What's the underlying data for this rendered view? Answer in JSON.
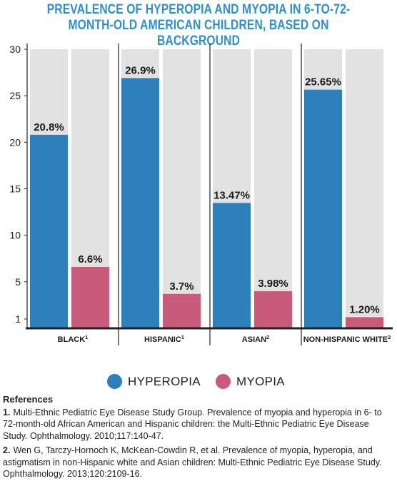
{
  "title": "PREVALENCE OF HYPEROPIA AND MYOPIA IN 6-TO-72-MONTH-OLD AMERICAN CHILDREN, BASED ON BACKGROUND",
  "colors": {
    "title": "#2e8fcf",
    "hyperopia": "#2e80bd",
    "myopia": "#c85a7a",
    "track": "#e2e2e2",
    "axis": "#222222"
  },
  "chart_data": {
    "type": "bar",
    "title": "PREVALENCE OF HYPEROPIA AND MYOPIA IN 6-TO-72-MONTH-OLD AMERICAN CHILDREN, BASED ON BACKGROUND",
    "xlabel": "",
    "ylabel": "",
    "ylim": [
      0,
      30
    ],
    "yticks": [
      {
        "value": 30,
        "label": "30"
      },
      {
        "value": 25,
        "label": "25"
      },
      {
        "value": 20,
        "label": "20"
      },
      {
        "value": 15,
        "label": "15"
      },
      {
        "value": 10,
        "label": "10"
      },
      {
        "value": 5,
        "label": "5"
      },
      {
        "value": 1,
        "label": "1"
      }
    ],
    "categories": [
      {
        "label": "BLACK",
        "sup": "1"
      },
      {
        "label": "HISPANIC",
        "sup": "1"
      },
      {
        "label": "ASIAN",
        "sup": "2"
      },
      {
        "label": "NON-HISPANIC WHITE",
        "sup": "2"
      }
    ],
    "series": [
      {
        "name": "HYPEROPIA",
        "values": [
          20.8,
          26.9,
          13.47,
          25.65
        ],
        "labels": [
          "20.8%",
          "26.9%",
          "13.47%",
          "25.65%"
        ]
      },
      {
        "name": "MYOPIA",
        "values": [
          6.6,
          3.7,
          3.98,
          1.2
        ],
        "labels": [
          "6.6%",
          "3.7%",
          "3.98%",
          "1.20%"
        ]
      }
    ],
    "grid": false,
    "legend": "bottom-center"
  },
  "legend": {
    "hyperopia": "HYPEROPIA",
    "myopia": "MYOPIA"
  },
  "references": {
    "heading": "References",
    "items": [
      {
        "num": "1.",
        "text": "Multi-Ethnic Pediatric Eye Disease Study Group. Prevalence of myopia and hyperopia in 6- to 72-month-old African American and Hispanic children: the Multi-Ethnic Pediatric Eye Disease Study. Ophthalmology. 2010;117:140-47."
      },
      {
        "num": "2.",
        "text": "Wen G, Tarczy-Hornoch K, McKean-Cowdin R, et al. Prevalence of myopia, hyperopia, and astigmatism in non-Hispanic white and Asian children: Multi-Ethnic Pediatric Eye Disease Study. Ophthalmology. 2013;120:2109-16."
      }
    ]
  }
}
